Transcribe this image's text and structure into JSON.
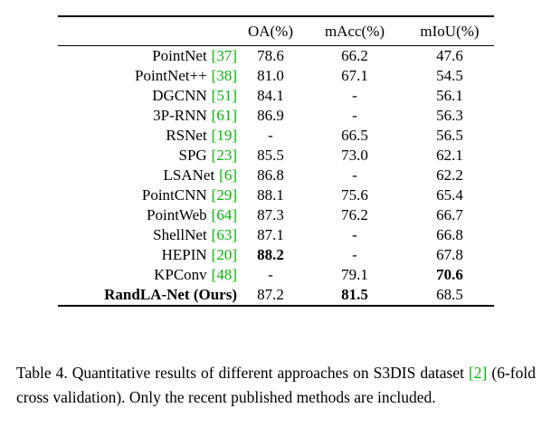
{
  "colors": {
    "citation_green": "#00BB00",
    "text": "#000000",
    "background": "#ffffff"
  },
  "table": {
    "columns": [
      "OA(%)",
      "mAcc(%)",
      "mIoU(%)"
    ],
    "rows": [
      {
        "method": "PointNet",
        "cite": "[37]",
        "oa": "78.6",
        "macc": "66.2",
        "miou": "47.6"
      },
      {
        "method": "PointNet++",
        "cite": "[38]",
        "oa": "81.0",
        "macc": "67.1",
        "miou": "54.5"
      },
      {
        "method": "DGCNN",
        "cite": "[51]",
        "oa": "84.1",
        "macc": "-",
        "miou": "56.1"
      },
      {
        "method": "3P-RNN",
        "cite": "[61]",
        "oa": "86.9",
        "macc": "-",
        "miou": "56.3"
      },
      {
        "method": "RSNet",
        "cite": "[19]",
        "oa": "-",
        "macc": "66.5",
        "miou": "56.5"
      },
      {
        "method": "SPG",
        "cite": "[23]",
        "oa": "85.5",
        "macc": "73.0",
        "miou": "62.1"
      },
      {
        "method": "LSANet",
        "cite": "[6]",
        "oa": "86.8",
        "macc": "-",
        "miou": "62.2"
      },
      {
        "method": "PointCNN",
        "cite": "[29]",
        "oa": "88.1",
        "macc": "75.6",
        "miou": "65.4"
      },
      {
        "method": "PointWeb",
        "cite": "[64]",
        "oa": "87.3",
        "macc": "76.2",
        "miou": "66.7"
      },
      {
        "method": "ShellNet",
        "cite": "[63]",
        "oa": "87.1",
        "macc": "-",
        "miou": "66.8"
      },
      {
        "method": "HEPIN",
        "cite": "[20]",
        "oa": "88.2",
        "macc": "-",
        "miou": "67.8"
      },
      {
        "method": "KPConv",
        "cite": "[48]",
        "oa": "-",
        "macc": "79.1",
        "miou": "70.6"
      },
      {
        "method": "RandLA-Net (Ours)",
        "cite": "",
        "oa": "87.2",
        "macc": "81.5",
        "miou": "68.5"
      }
    ]
  },
  "caption": {
    "prefix": "Table 4. Quantitative results of different approaches on S3DIS dataset ",
    "cite": "[2]",
    "suffix": " (6-fold cross validation). Only the recent published methods are included."
  }
}
